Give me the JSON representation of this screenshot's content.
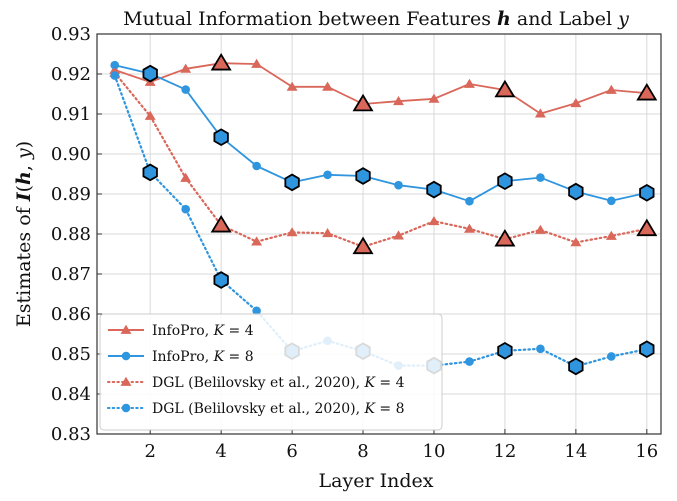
{
  "chart_data": {
    "type": "line",
    "title": "Mutual Information between Features h and Label y",
    "xlabel": "Layer Index",
    "ylabel": "Estimates of I(h, y)",
    "xlim": [
      0.5,
      16.4
    ],
    "ylim": [
      0.83,
      0.93
    ],
    "xticks": [
      2,
      4,
      6,
      8,
      10,
      12,
      14,
      16
    ],
    "yticks": [
      0.83,
      0.84,
      0.85,
      0.86,
      0.87,
      0.88,
      0.89,
      0.9,
      0.91,
      0.92,
      0.93
    ],
    "ytick_labels": [
      "0.83",
      "0.84",
      "0.85",
      "0.86",
      "0.87",
      "0.88",
      "0.89",
      "0.90",
      "0.91",
      "0.92",
      "0.93"
    ],
    "grid": true,
    "legend_position": "bottom-left",
    "x": [
      1,
      2,
      3,
      4,
      5,
      6,
      7,
      8,
      9,
      10,
      11,
      12,
      13,
      14,
      15,
      16
    ],
    "series": [
      {
        "name": "InfoPro, K = 4",
        "color": "#d9675a",
        "line_style": "solid",
        "marker": "triangle",
        "values": [
          0.921,
          0.918,
          0.9213,
          0.9227,
          0.9225,
          0.9168,
          0.9168,
          0.9125,
          0.9132,
          0.9138,
          0.9175,
          0.916,
          0.9101,
          0.9127,
          0.916,
          0.9152
        ],
        "highlighted": [
          4,
          8,
          12,
          16
        ]
      },
      {
        "name": "InfoPro, K = 8",
        "color": "#2e95de",
        "line_style": "solid",
        "marker": "circle",
        "values": [
          0.9222,
          0.9201,
          0.9161,
          0.9042,
          0.897,
          0.8929,
          0.8948,
          0.8945,
          0.8922,
          0.8911,
          0.8882,
          0.8932,
          0.8941,
          0.8906,
          0.8883,
          0.8903
        ],
        "highlighted": [
          2,
          4,
          6,
          8,
          10,
          12,
          14,
          16
        ]
      },
      {
        "name": "DGL (Belilovsky et al., 2020), K = 4",
        "color": "#d9675a",
        "line_style": "dotted",
        "marker": "triangle",
        "values": [
          0.9203,
          0.9095,
          0.894,
          0.8822,
          0.8781,
          0.8804,
          0.8802,
          0.8768,
          0.8796,
          0.8832,
          0.8813,
          0.8787,
          0.881,
          0.8779,
          0.8795,
          0.8813
        ],
        "highlighted": [
          4,
          8,
          12,
          16
        ]
      },
      {
        "name": "DGL (Belilovsky et al., 2020), K = 8",
        "color": "#2e95de",
        "line_style": "dotted",
        "marker": "circle",
        "values": [
          0.9196,
          0.8954,
          0.8862,
          0.8685,
          0.8608,
          0.8507,
          0.8533,
          0.8507,
          0.8471,
          0.8471,
          0.8481,
          0.8508,
          0.8513,
          0.8469,
          0.8494,
          0.8512
        ],
        "highlighted": [
          2,
          4,
          6,
          8,
          10,
          12,
          14,
          16
        ]
      }
    ]
  }
}
